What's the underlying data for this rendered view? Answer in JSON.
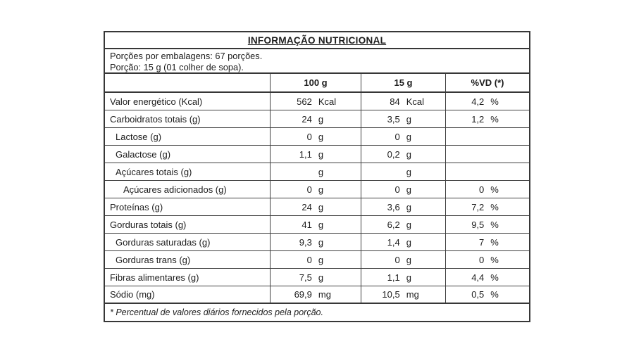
{
  "table": {
    "title": "INFORMAÇÃO NUTRICIONAL",
    "serving_info": {
      "servings_per_package": "Porções por embalagens: 67 porções.",
      "serving_size": "Porção: 15 g (01 colher de sopa)."
    },
    "columns": [
      "100 g",
      "15 g",
      "%VD (*)"
    ],
    "rows": [
      {
        "label": "Valor energético (Kcal)",
        "indent": 0,
        "per100": {
          "value": "562",
          "unit": "Kcal"
        },
        "per15": {
          "value": "84",
          "unit": "Kcal"
        },
        "vd": {
          "value": "4,2",
          "unit": "%"
        }
      },
      {
        "label": "Carboidratos totais (g)",
        "indent": 0,
        "per100": {
          "value": "24",
          "unit": "g"
        },
        "per15": {
          "value": "3,5",
          "unit": "g"
        },
        "vd": {
          "value": "1,2",
          "unit": "%"
        }
      },
      {
        "label": "Lactose (g)",
        "indent": 1,
        "per100": {
          "value": "0",
          "unit": "g"
        },
        "per15": {
          "value": "0",
          "unit": "g"
        },
        "vd": {
          "value": "",
          "unit": ""
        }
      },
      {
        "label": "Galactose (g)",
        "indent": 1,
        "per100": {
          "value": "1,1",
          "unit": "g"
        },
        "per15": {
          "value": "0,2",
          "unit": "g"
        },
        "vd": {
          "value": "",
          "unit": ""
        }
      },
      {
        "label": "Açúcares totais (g)",
        "indent": 1,
        "per100": {
          "value": "",
          "unit": "g"
        },
        "per15": {
          "value": "",
          "unit": "g"
        },
        "vd": {
          "value": "",
          "unit": ""
        }
      },
      {
        "label": "Açúcares adicionados (g)",
        "indent": 2,
        "per100": {
          "value": "0",
          "unit": "g"
        },
        "per15": {
          "value": "0",
          "unit": "g"
        },
        "vd": {
          "value": "0",
          "unit": "%"
        }
      },
      {
        "label": "Proteínas (g)",
        "indent": 0,
        "per100": {
          "value": "24",
          "unit": "g"
        },
        "per15": {
          "value": "3,6",
          "unit": "g"
        },
        "vd": {
          "value": "7,2",
          "unit": "%"
        }
      },
      {
        "label": "Gorduras totais (g)",
        "indent": 0,
        "per100": {
          "value": "41",
          "unit": "g"
        },
        "per15": {
          "value": "6,2",
          "unit": "g"
        },
        "vd": {
          "value": "9,5",
          "unit": "%"
        }
      },
      {
        "label": "Gorduras saturadas (g)",
        "indent": 1,
        "per100": {
          "value": "9,3",
          "unit": "g"
        },
        "per15": {
          "value": "1,4",
          "unit": "g"
        },
        "vd": {
          "value": "7",
          "unit": "%"
        }
      },
      {
        "label": "Gorduras trans (g)",
        "indent": 1,
        "per100": {
          "value": "0",
          "unit": "g"
        },
        "per15": {
          "value": "0",
          "unit": "g"
        },
        "vd": {
          "value": "0",
          "unit": "%"
        }
      },
      {
        "label": "Fibras alimentares (g)",
        "indent": 0,
        "per100": {
          "value": "7,5",
          "unit": "g"
        },
        "per15": {
          "value": "1,1",
          "unit": "g"
        },
        "vd": {
          "value": "4,4",
          "unit": "%"
        }
      },
      {
        "label": "Sódio (mg)",
        "indent": 0,
        "per100": {
          "value": "69,9",
          "unit": "mg"
        },
        "per15": {
          "value": "10,5",
          "unit": "mg"
        },
        "vd": {
          "value": "0,5",
          "unit": "%"
        }
      }
    ],
    "footnote": "* Percentual de valores diários fornecidos pela porção.",
    "colors": {
      "border": "#373737",
      "text": "#1c1c1c",
      "background": "#ffffff"
    }
  }
}
